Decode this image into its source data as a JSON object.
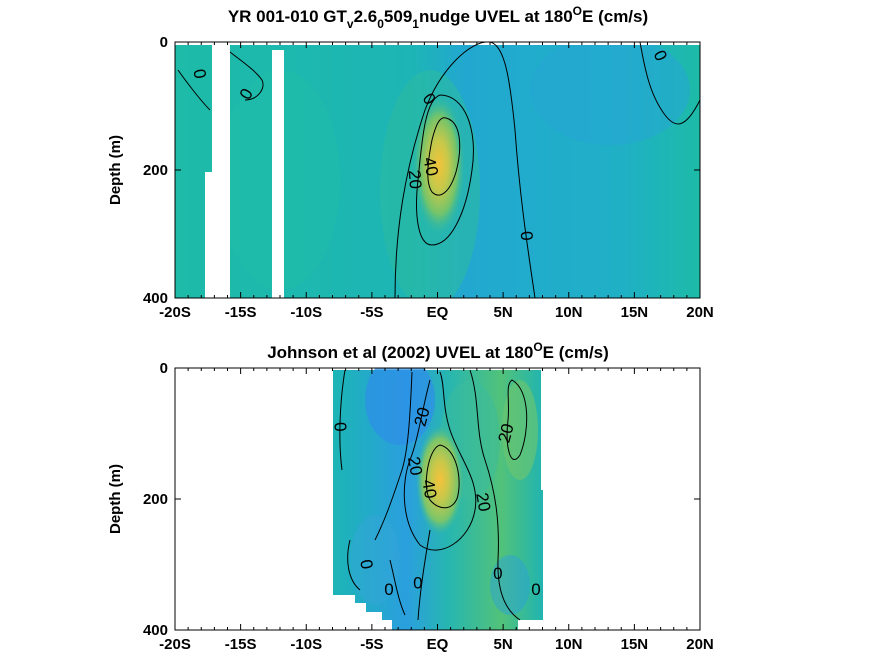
{
  "chart_data": [
    {
      "type": "heatmap",
      "title": "YR 001-010 GT",
      "title_sub1": "v",
      "title_mid": "2.6",
      "title_sub2": "0",
      "title_mid2": "509",
      "title_sub3": "1",
      "title_tail": "nudge UVEL at 180",
      "title_sup": "O",
      "title_end": "E (cm/s)",
      "xlabel": "",
      "ylabel": "Depth (m)",
      "xlim": [
        -20,
        20
      ],
      "ylim": [
        400,
        0
      ],
      "x_ticks": [
        -20,
        -15,
        -10,
        -5,
        0,
        5,
        10,
        15,
        20
      ],
      "x_tick_labels": [
        "-20S",
        "-15S",
        "-10S",
        "-5S",
        "EQ",
        "5N",
        "10N",
        "15N",
        "20N"
      ],
      "y_ticks": [
        0,
        200,
        400
      ],
      "y_tick_labels": [
        "0",
        "200",
        "400"
      ],
      "core": {
        "lat": 0.3,
        "depth": 160,
        "max_speed": 55
      },
      "contour_labels": [
        {
          "text": "0",
          "lat": -18.2,
          "depth": 50,
          "rotate": 80
        },
        {
          "text": "0",
          "lat": -14.5,
          "depth": 82,
          "rotate": -60
        },
        {
          "text": "0",
          "lat": -0.7,
          "depth": 90,
          "rotate": 55
        },
        {
          "text": "40",
          "lat": -0.6,
          "depth": 195,
          "rotate": 78
        },
        {
          "text": "20",
          "lat": -1.8,
          "depth": 215,
          "rotate": 85
        },
        {
          "text": "0",
          "lat": 6.7,
          "depth": 303,
          "rotate": 85
        },
        {
          "text": "0",
          "lat": 16.9,
          "depth": 22,
          "rotate": 65
        }
      ]
    },
    {
      "type": "heatmap",
      "title": "Johnson et al (2002) UVEL at 180",
      "title_sup": "O",
      "title_end": "E (cm/s)",
      "xlabel": "",
      "ylabel": "Depth (m)",
      "xlim": [
        -20,
        20
      ],
      "ylim": [
        400,
        0
      ],
      "x_ticks": [
        -20,
        -15,
        -10,
        -5,
        0,
        5,
        10,
        15,
        20
      ],
      "x_tick_labels": [
        "-20S",
        "-15S",
        "-10S",
        "-5S",
        "EQ",
        "5N",
        "10N",
        "15N",
        "20N"
      ],
      "y_ticks": [
        0,
        200,
        400
      ],
      "y_tick_labels": [
        "0",
        "200",
        "400"
      ],
      "data_extent_lat": [
        -8,
        8
      ],
      "core": {
        "lat": 0.3,
        "depth": 170,
        "max_speed": 55
      },
      "contour_labels": [
        {
          "text": "0",
          "lat": -7.5,
          "depth": 90,
          "rotate": 85
        },
        {
          "text": "20",
          "lat": -1.1,
          "depth": 75,
          "rotate": -75
        },
        {
          "text": "20",
          "lat": 5.3,
          "depth": 100,
          "rotate": -75
        },
        {
          "text": "20",
          "lat": -1.8,
          "depth": 150,
          "rotate": 80
        },
        {
          "text": "40",
          "lat": -0.7,
          "depth": 185,
          "rotate": 80
        },
        {
          "text": "20",
          "lat": 3.4,
          "depth": 205,
          "rotate": 80
        },
        {
          "text": "0",
          "lat": -5.5,
          "depth": 300,
          "rotate": 80
        },
        {
          "text": "0",
          "lat": -1.5,
          "depth": 330,
          "rotate": 0
        },
        {
          "text": "0",
          "lat": -3.7,
          "depth": 340,
          "rotate": 0
        },
        {
          "text": "0",
          "lat": 4.6,
          "depth": 315,
          "rotate": 0
        },
        {
          "text": "0",
          "lat": 7.5,
          "depth": 340,
          "rotate": 0
        }
      ]
    }
  ]
}
